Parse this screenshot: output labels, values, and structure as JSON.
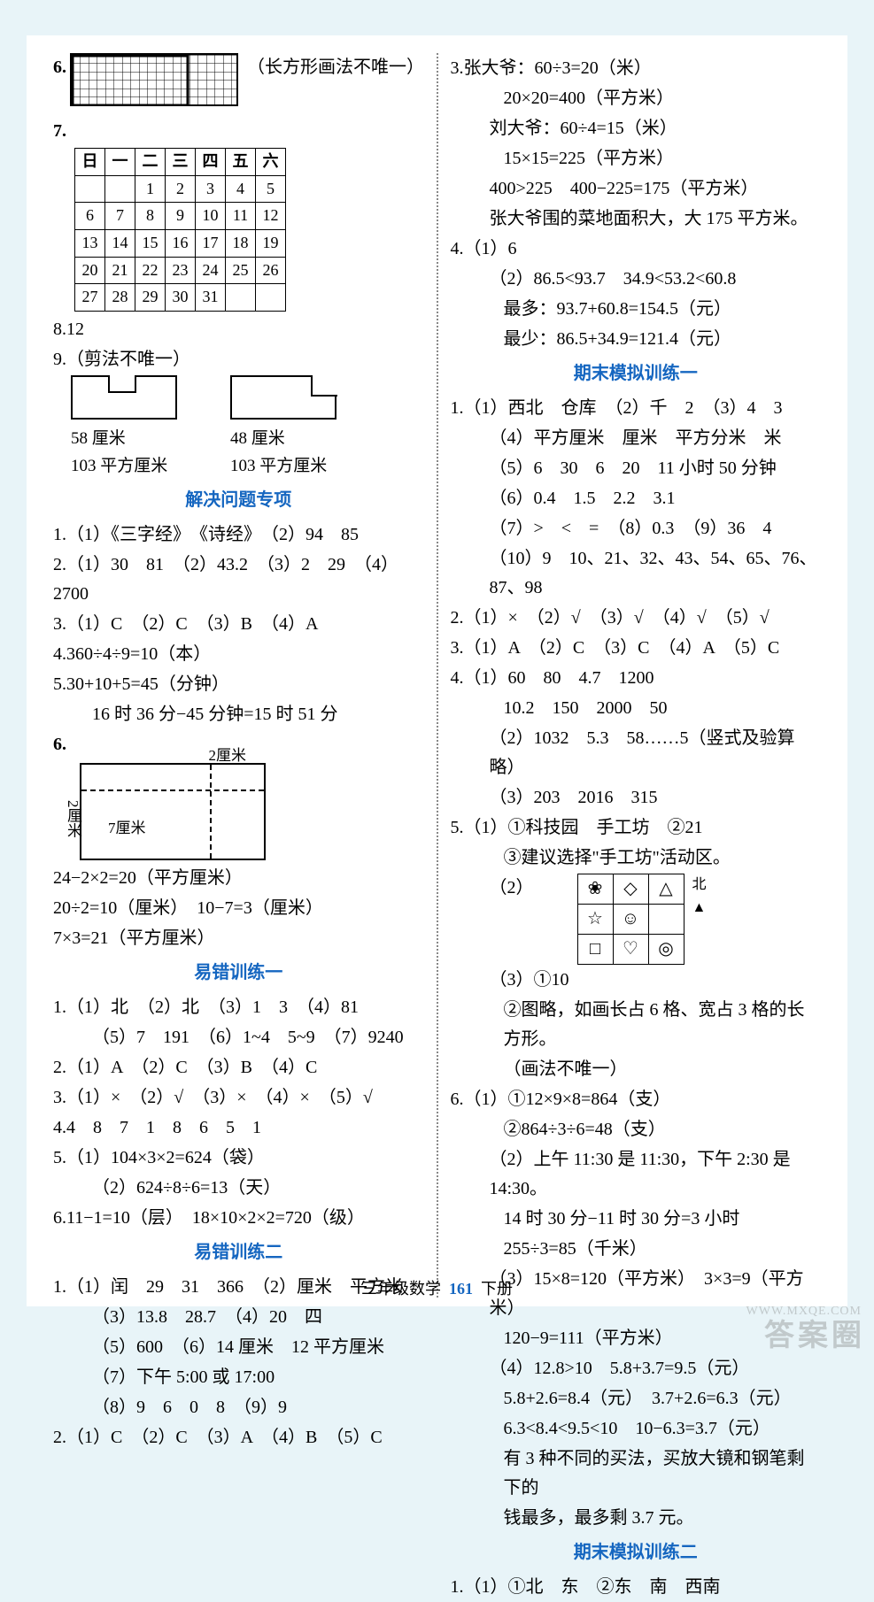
{
  "left": {
    "q6_note": "（长方形画法不唯一）",
    "q7_header": [
      "日",
      "一",
      "二",
      "三",
      "四",
      "五",
      "六"
    ],
    "q7_rows": [
      [
        "",
        "",
        "1",
        "2",
        "3",
        "4",
        "5"
      ],
      [
        "6",
        "7",
        "8",
        "9",
        "10",
        "11",
        "12"
      ],
      [
        "13",
        "14",
        "15",
        "16",
        "17",
        "18",
        "19"
      ],
      [
        "20",
        "21",
        "22",
        "23",
        "24",
        "25",
        "26"
      ],
      [
        "27",
        "28",
        "29",
        "30",
        "31",
        "",
        ""
      ]
    ],
    "q8": "8.12",
    "q9_title": "9.（剪法不唯一）",
    "q9a_p": "58 厘米",
    "q9a_a": "103 平方厘米",
    "q9b_p": "48 厘米",
    "q9b_a": "103 平方厘米",
    "sec1": "解决问题专项",
    "s1_1": "1.（1）《三字经》　《诗经》　（2）94　85",
    "s1_2": "2.（1）30　81　（2）43.2　（3）2　29　（4）2700",
    "s1_3": "3.（1）C　（2）C　（3）B　（4）A",
    "s1_4": "4.360÷4÷9=10（本）",
    "s1_5a": "5.30+10+5=45（分钟）",
    "s1_5b": "16 时 36 分−45 分钟=15 时 51 分",
    "s1_6_top": "2厘米",
    "s1_6_left": "2厘米",
    "s1_6_in": "7厘米",
    "s1_6a": "24−2×2=20（平方厘米）",
    "s1_6b": "20÷2=10（厘米）　10−7=3（厘米）",
    "s1_6c": "7×3=21（平方厘米）",
    "sec2": "易错训练一",
    "e1_1": "1.（1）北　（2）北　（3）1　3　（4）81",
    "e1_1b": "（5）7　191　（6）1~4　5~9　（7）9240",
    "e1_2": "2.（1）A　（2）C　（3）B　（4）C",
    "e1_3": "3.（1）×　（2）√　（3）×　（4）×　（5）√",
    "e1_4": "4.4　8　7　1　8　6　5　1",
    "e1_5a": "5.（1）104×3×2=624（袋）",
    "e1_5b": "（2）624÷8÷6=13（天）",
    "e1_6": "6.11−1=10（层）　18×10×2×2=720（级）",
    "sec3": "易错训练二",
    "e2_1": "1.（1）闰　29　31　366　（2）厘米　平方米",
    "e2_1b": "（3）13.8　28.7　（4）20　四",
    "e2_1c": "（5）600　（6）14 厘米　12 平方厘米",
    "e2_1d": "（7）下午 5:00 或 17:00",
    "e2_1e": "（8）9　6　0　8　（9）9",
    "e2_2": "2.（1）C　（2）C　（3）A　（4）B　（5）C"
  },
  "right": {
    "r3a": "3.张大爷：60÷3=20（米）",
    "r3b": "20×20=400（平方米）",
    "r3c": "刘大爷：60÷4=15（米）",
    "r3d": "15×15=225（平方米）",
    "r3e": "400>225　400−225=175（平方米）",
    "r3f": "张大爷围的菜地面积大，大 175 平方米。",
    "r4a": "4.（1）6",
    "r4b": "（2）86.5<93.7　34.9<53.2<60.8",
    "r4c": "最多：93.7+60.8=154.5（元）",
    "r4d": "最少：86.5+34.9=121.4（元）",
    "sec4": "期末模拟训练一",
    "f1_1": "1.（1）西北　仓库　（2）千　2　（3）4　3",
    "f1_1b": "（4）平方厘米　厘米　平方分米　米",
    "f1_1c": "（5）6　30　6　20　11 小时 50 分钟",
    "f1_1d": "（6）0.4　1.5　2.2　3.1",
    "f1_1e": "（7）>　<　=　（8）0.3　（9）36　4",
    "f1_1f": "（10）9　10、21、32、43、54、65、76、87、98",
    "f1_2": "2.（1）×　（2）√　（3）√　（4）√　（5）√",
    "f1_3": "3.（1）A　（2）C　（3）C　（4）A　（5）C",
    "f1_4a": "4.（1）60　80　4.7　1200",
    "f1_4b": "10.2　150　2000　50",
    "f1_4c": "（2）1032　5.3　58……5（竖式及验算略）",
    "f1_4d": "（3）203　2016　315",
    "f1_5a": "5.（1）①科技园　手工坊　②21",
    "f1_5b": "③建议选择\"手工坊\"活动区。",
    "f1_5c_north": "北",
    "sym": [
      [
        "❀",
        "◇",
        "△"
      ],
      [
        "☆",
        "☺",
        ""
      ],
      [
        "□",
        "♡",
        "◎"
      ]
    ],
    "f1_5d": "（3）①10",
    "f1_5e": "②图略，如画长占 6 格、宽占 3 格的长方形。",
    "f1_5f": "（画法不唯一）",
    "f1_6a": "6.（1）①12×9×8=864（支）",
    "f1_6b": "②864÷3÷6=48（支）",
    "f1_6c": "（2）上午 11:30 是 11:30，下午 2:30 是 14:30。",
    "f1_6d": "14 时 30 分−11 时 30 分=3 小时",
    "f1_6e": "255÷3=85（千米）",
    "f1_6f": "（3）15×8=120（平方米）　3×3=9（平方米）",
    "f1_6g": "120−9=111（平方米）",
    "f1_6h": "（4）12.8>10　5.8+3.7=9.5（元）",
    "f1_6i": "5.8+2.6=8.4（元）　3.7+2.6=6.3（元）",
    "f1_6j": "6.3<8.4<9.5<10　10−6.3=3.7（元）",
    "f1_6k": "有 3 种不同的买法，买放大镜和钢笔剩下的",
    "f1_6l": "钱最多，最多剩 3.7 元。",
    "sec5": "期末模拟训练二",
    "f2_1": "1.（1）①北　东　②东　南　西南"
  },
  "footer": {
    "a": "三年级数学",
    "pg": "161",
    "b": "下册"
  },
  "watermark": "答案圈",
  "wm_url": "WWW.MXQE.COM"
}
